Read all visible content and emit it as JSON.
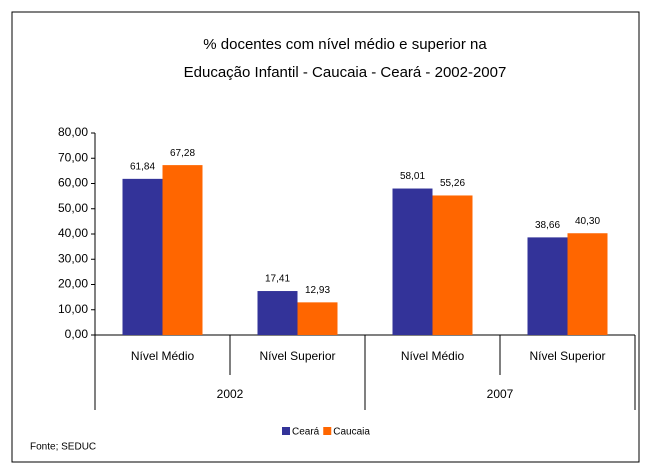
{
  "chart_data": {
    "type": "bar",
    "title": [
      "% docentes com nível médio e superior na",
      "Educação Infantil - Caucaia -  Ceará - 2002-2007"
    ],
    "categories": [
      "Nível Médio",
      "Nível Superior",
      "Nível Médio",
      "Nível Superior"
    ],
    "category_groups": [
      "2002",
      "2007"
    ],
    "series": [
      {
        "name": "Ceará",
        "color": "#333399",
        "values": [
          61.84,
          17.41,
          58.01,
          38.66
        ],
        "value_labels": [
          "61,84",
          "17,41",
          "58,01",
          "38,66"
        ]
      },
      {
        "name": "Caucaia",
        "color": "#ff6600",
        "values": [
          67.28,
          12.93,
          55.26,
          40.3
        ],
        "value_labels": [
          "67,28",
          "12,93",
          "55,26",
          "40,30"
        ]
      }
    ],
    "ylim": [
      0,
      80
    ],
    "yticks": [
      {
        "value": 0,
        "label": "0,00"
      },
      {
        "value": 10,
        "label": "10,00"
      },
      {
        "value": 20,
        "label": "20,00"
      },
      {
        "value": 30,
        "label": "30,00"
      },
      {
        "value": 40,
        "label": "40,00"
      },
      {
        "value": 50,
        "label": "50,00"
      },
      {
        "value": 60,
        "label": "60,00"
      },
      {
        "value": 70,
        "label": "70,00"
      },
      {
        "value": 80,
        "label": "80,00"
      }
    ],
    "legend": "bottom",
    "source": "Fonte; SEDUC"
  }
}
